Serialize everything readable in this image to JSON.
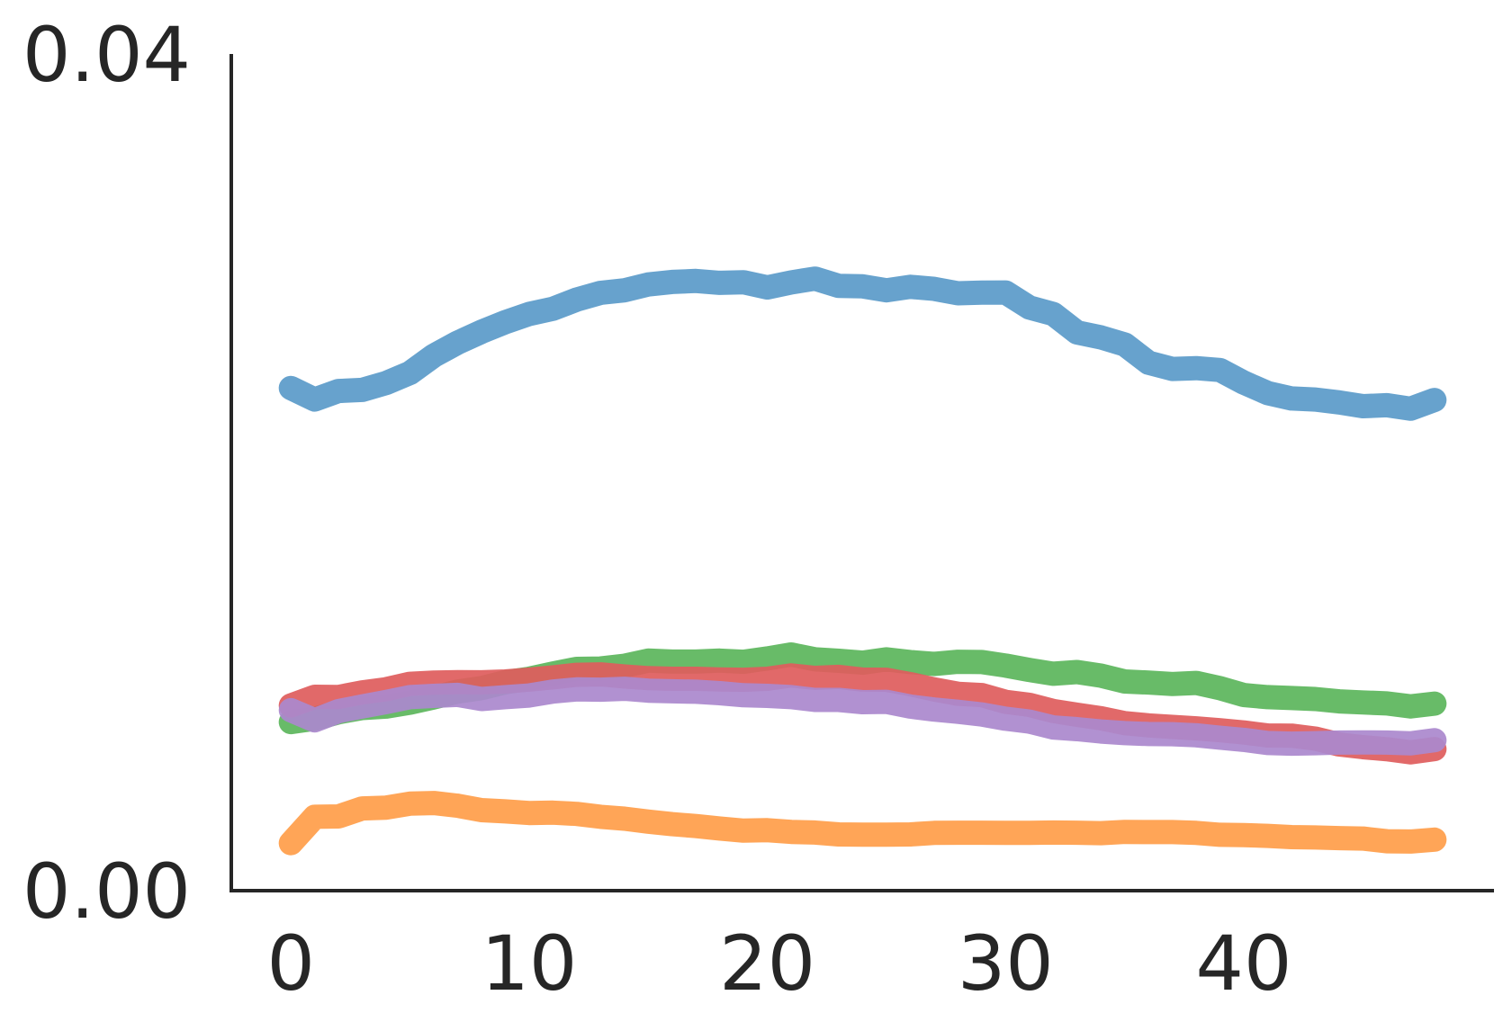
{
  "chart_data": {
    "type": "line",
    "title": "",
    "xlabel": "",
    "ylabel": "",
    "xlim": [
      -2.5,
      50.5
    ],
    "ylim": [
      0.0,
      0.04
    ],
    "x_ticks": [
      0,
      10,
      20,
      30,
      40
    ],
    "x_tick_labels": [
      "0",
      "10",
      "20",
      "30",
      "40"
    ],
    "y_ticks": [
      0.0,
      0.04
    ],
    "y_tick_labels": [
      "0.00",
      "0.04"
    ],
    "grid": false,
    "legend": false,
    "x": [
      0,
      1,
      2,
      3,
      4,
      5,
      6,
      7,
      8,
      9,
      10,
      11,
      12,
      13,
      14,
      15,
      16,
      17,
      18,
      19,
      20,
      21,
      22,
      23,
      24,
      25,
      26,
      27,
      28,
      29,
      30,
      31,
      32,
      33,
      34,
      35,
      36,
      37,
      38,
      39,
      40,
      41,
      42,
      43,
      44,
      45,
      46,
      47,
      48
    ],
    "series": [
      {
        "color": "#5b9bc9",
        "values": [
          0.02403,
          0.02348,
          0.02389,
          0.02394,
          0.02427,
          0.02475,
          0.02558,
          0.0262,
          0.02672,
          0.02718,
          0.02757,
          0.02782,
          0.02826,
          0.02858,
          0.0287,
          0.02898,
          0.0291,
          0.02915,
          0.02906,
          0.02909,
          0.02884,
          0.02908,
          0.02926,
          0.02891,
          0.02889,
          0.0287,
          0.02887,
          0.02877,
          0.02856,
          0.02859,
          0.0286,
          0.02788,
          0.02757,
          0.02669,
          0.02645,
          0.02611,
          0.02524,
          0.02494,
          0.02498,
          0.02489,
          0.02429,
          0.02379,
          0.02353,
          0.02348,
          0.02334,
          0.02316,
          0.02321,
          0.02304,
          0.02346
        ]
      },
      {
        "color": "#ff9e4a",
        "values": [
          0.00227,
          0.00353,
          0.00355,
          0.00393,
          0.00397,
          0.00416,
          0.00419,
          0.00406,
          0.00385,
          0.00379,
          0.00371,
          0.00373,
          0.00367,
          0.00353,
          0.00344,
          0.0033,
          0.00318,
          0.00309,
          0.00297,
          0.00287,
          0.00289,
          0.00281,
          0.00278,
          0.00269,
          0.00268,
          0.00268,
          0.00269,
          0.00276,
          0.00277,
          0.00277,
          0.00276,
          0.00276,
          0.00278,
          0.00277,
          0.00275,
          0.00281,
          0.0028,
          0.0028,
          0.00276,
          0.00267,
          0.00266,
          0.00262,
          0.00256,
          0.00254,
          0.00251,
          0.00249,
          0.00236,
          0.00235,
          0.00244
        ]
      },
      {
        "color": "#5db65d",
        "values": [
          0.00806,
          0.00822,
          0.00853,
          0.00873,
          0.0088,
          0.00899,
          0.00924,
          0.00952,
          0.00968,
          0.00996,
          0.01013,
          0.01038,
          0.0106,
          0.01062,
          0.01075,
          0.011,
          0.01095,
          0.01095,
          0.011,
          0.01094,
          0.0111,
          0.01129,
          0.01106,
          0.01099,
          0.0109,
          0.01106,
          0.01093,
          0.01084,
          0.01094,
          0.01093,
          0.01076,
          0.01055,
          0.01037,
          0.01045,
          0.01028,
          0.01,
          0.00995,
          0.00988,
          0.00993,
          0.00968,
          0.00935,
          0.00925,
          0.00921,
          0.00916,
          0.00905,
          0.009,
          0.00895,
          0.00881,
          0.00894
        ]
      },
      {
        "color": "#df5e5e",
        "values": [
          0.00885,
          0.00927,
          0.00926,
          0.00948,
          0.00963,
          0.00989,
          0.00995,
          0.00997,
          0.00996,
          0.01,
          0.01009,
          0.0102,
          0.01032,
          0.01034,
          0.01024,
          0.01016,
          0.01013,
          0.01013,
          0.0101,
          0.01008,
          0.01013,
          0.01029,
          0.01017,
          0.01022,
          0.01009,
          0.01008,
          0.00987,
          0.00962,
          0.00941,
          0.00935,
          0.00903,
          0.00888,
          0.00859,
          0.00841,
          0.00824,
          0.00801,
          0.0079,
          0.00783,
          0.00776,
          0.00767,
          0.00756,
          0.00742,
          0.00741,
          0.00727,
          0.00699,
          0.00686,
          0.00676,
          0.00661,
          0.00677
        ]
      },
      {
        "color": "#ab89cd",
        "values": [
          0.00863,
          0.00814,
          0.00858,
          0.00881,
          0.00902,
          0.00925,
          0.00931,
          0.00936,
          0.00916,
          0.00925,
          0.00933,
          0.00952,
          0.00962,
          0.00961,
          0.00965,
          0.00956,
          0.00953,
          0.00951,
          0.00944,
          0.00934,
          0.00931,
          0.00925,
          0.00912,
          0.00912,
          0.00901,
          0.00903,
          0.0088,
          0.00866,
          0.00855,
          0.00842,
          0.00822,
          0.00808,
          0.0078,
          0.00772,
          0.00761,
          0.00753,
          0.00749,
          0.00748,
          0.00743,
          0.00731,
          0.00721,
          0.00706,
          0.00703,
          0.00705,
          0.00708,
          0.00709,
          0.00708,
          0.00704,
          0.00719
        ]
      }
    ]
  }
}
